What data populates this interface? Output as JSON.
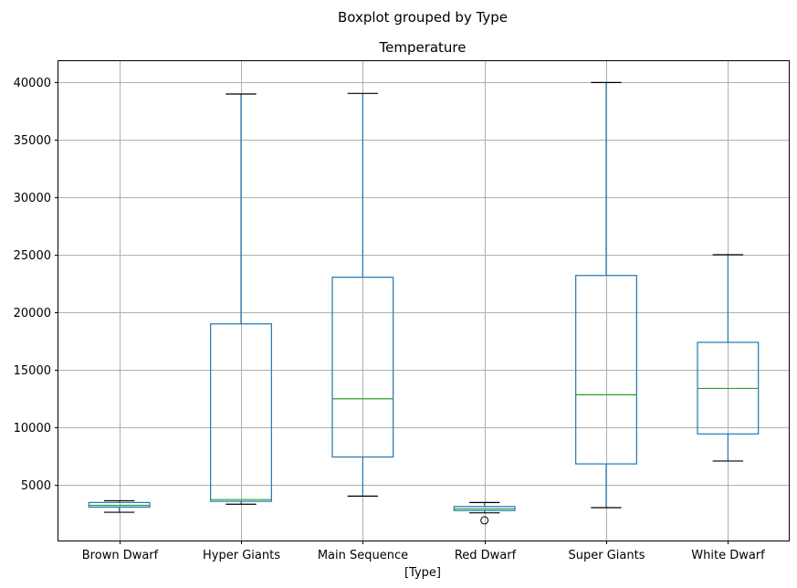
{
  "chart_data": {
    "type": "boxplot",
    "suptitle": "Boxplot grouped by Type",
    "title": "Temperature",
    "xlabel": "[Type]",
    "ylabel": "",
    "ylim": [
      200,
      41800
    ],
    "yticks": [
      5000,
      10000,
      15000,
      20000,
      25000,
      30000,
      35000,
      40000
    ],
    "grid": true,
    "colors": {
      "box": "#1f77b4",
      "median": "#2ca02c",
      "cap": "#000000",
      "grid": "#b0b0b0"
    },
    "categories": [
      "Brown Dwarf",
      "Hyper Giants",
      "Main Sequence",
      "Red Dwarf",
      "Super Giants",
      "White Dwarf"
    ],
    "boxes": [
      {
        "category": "Brown Dwarf",
        "whisker_low": 2650,
        "q1": 3100,
        "median": 3250,
        "q3": 3500,
        "whisker_high": 3650,
        "outliers": []
      },
      {
        "category": "Hyper Giants",
        "whisker_low": 3350,
        "q1": 3600,
        "median": 3750,
        "q3": 19000,
        "whisker_high": 38950,
        "outliers": []
      },
      {
        "category": "Main Sequence",
        "whisker_low": 4050,
        "q1": 7450,
        "median": 12500,
        "q3": 23050,
        "whisker_high": 39000,
        "outliers": []
      },
      {
        "category": "Red Dwarf",
        "whisker_low": 2600,
        "q1": 2800,
        "median": 2950,
        "q3": 3150,
        "whisker_high": 3500,
        "outliers": [
          1950
        ]
      },
      {
        "category": "Super Giants",
        "whisker_low": 3050,
        "q1": 6850,
        "median": 12850,
        "q3": 23200,
        "whisker_high": 39950,
        "outliers": []
      },
      {
        "category": "White Dwarf",
        "whisker_low": 7100,
        "q1": 9450,
        "median": 13400,
        "q3": 17400,
        "whisker_high": 25000,
        "outliers": []
      }
    ]
  }
}
